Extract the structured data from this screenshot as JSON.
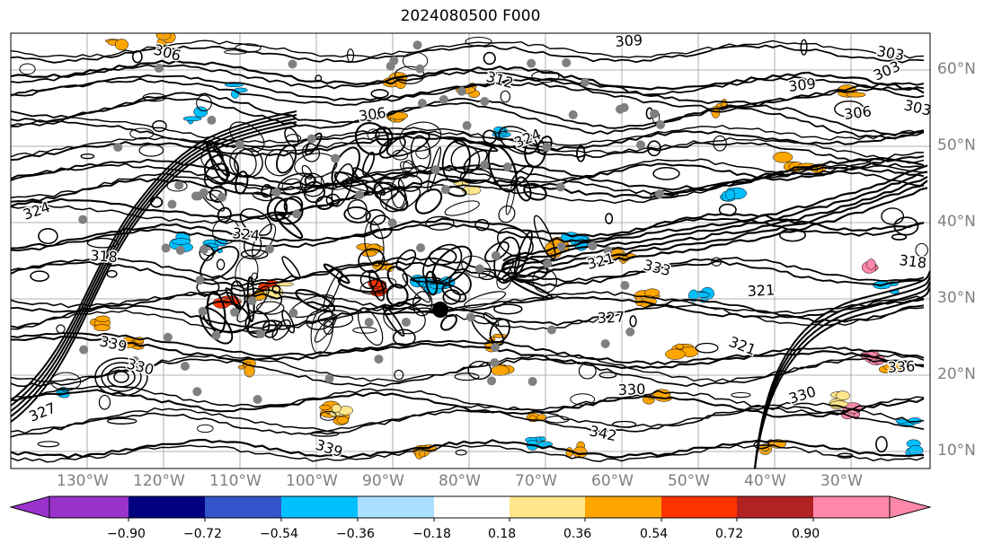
{
  "title": "2024080500 F000",
  "map": {
    "lon_labels": [
      "130°W",
      "120°W",
      "110°W",
      "100°W",
      "90°W",
      "80°W",
      "70°W",
      "60°W",
      "50°W",
      "40°W",
      "30°W"
    ],
    "lat_labels": [
      "60°N",
      "50°N",
      "40°N",
      "30°N",
      "20°N",
      "10°N"
    ],
    "contour_labels": [
      "306",
      "309",
      "303",
      "318",
      "321",
      "324",
      "327",
      "330",
      "333",
      "336",
      "339",
      "342"
    ],
    "gridline_color": "#999999",
    "contour_color": "#000000"
  },
  "colorbar": {
    "ticks": [
      "−0.90",
      "−0.72",
      "−0.54",
      "−0.36",
      "−0.18",
      "0.18",
      "0.36",
      "0.54",
      "0.72",
      "0.90"
    ],
    "colors": [
      "#9933cc",
      "#000080",
      "#3355cc",
      "#00bfff",
      "#aadfff",
      "#ffffff",
      "#ffe68a",
      "#ffa500",
      "#ff3300",
      "#b22222",
      "#ff88aa"
    ]
  }
}
